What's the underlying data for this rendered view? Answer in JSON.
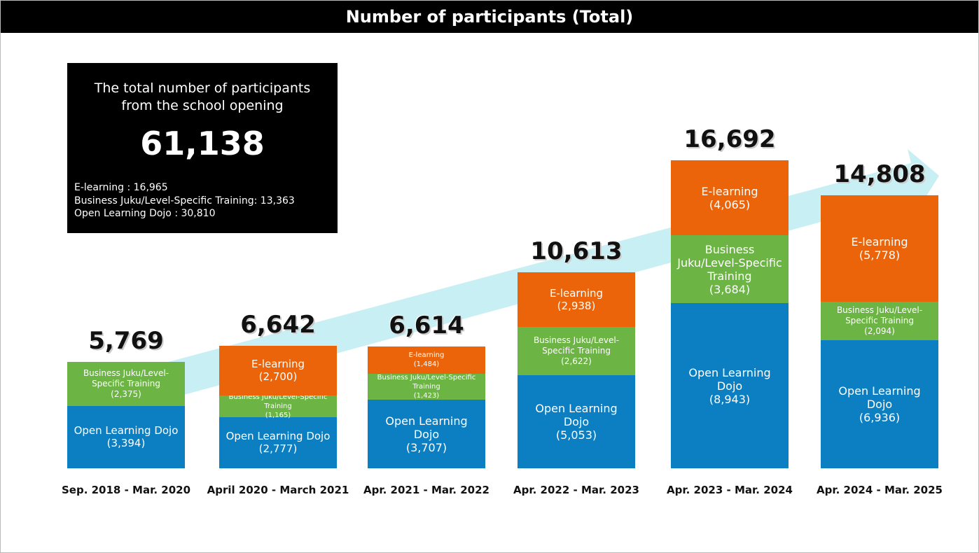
{
  "chart_data": {
    "type": "stacked_bar",
    "title": "Number of participants (Total)",
    "categories": [
      "Sep. 2018 - Mar. 2020",
      "April 2020 - March 2021",
      "Apr. 2021 - Mar. 2022",
      "Apr. 2022 - Mar. 2023",
      "Apr. 2023 - Mar. 2024",
      "Apr. 2024 - Mar. 2025"
    ],
    "series": [
      {
        "name": "Open Learning Dojo",
        "color": "#0b7fc1",
        "values": [
          3394,
          2777,
          3707,
          5053,
          8943,
          6936
        ],
        "value_labels": [
          "(3,394)",
          "(2,777)",
          "(3,707)",
          "(5,053)",
          "(8,943)",
          "(6,936)"
        ]
      },
      {
        "name": "Business Juku/Level-Specific Training",
        "color": "#6cb545",
        "values": [
          2375,
          1165,
          1423,
          2622,
          3684,
          2094
        ],
        "value_labels": [
          "(2,375)",
          "(1,165)",
          "(1,423)",
          "(2,622)",
          "(3,684)",
          "(2,094)"
        ]
      },
      {
        "name": "E-learning",
        "color": "#eb6409",
        "values": [
          null,
          2700,
          1484,
          2938,
          4065,
          5778
        ],
        "value_labels": [
          null,
          "(2,700)",
          "(1,484)",
          "(2,938)",
          "(4,065)",
          "(5,778)"
        ]
      }
    ],
    "totals": [
      5769,
      6642,
      6614,
      10613,
      16692,
      14808
    ],
    "total_labels": [
      "5,769",
      "6,642",
      "6,614",
      "10,613",
      "16,692",
      "14,808"
    ]
  },
  "summary": {
    "heading": "The total number of participants from the school opening",
    "total": "61,138",
    "lines": [
      "E-learning : 16,965",
      "Business Juku/Level-Specific Training: 13,363",
      "Open Learning Dojo : 30,810"
    ]
  }
}
